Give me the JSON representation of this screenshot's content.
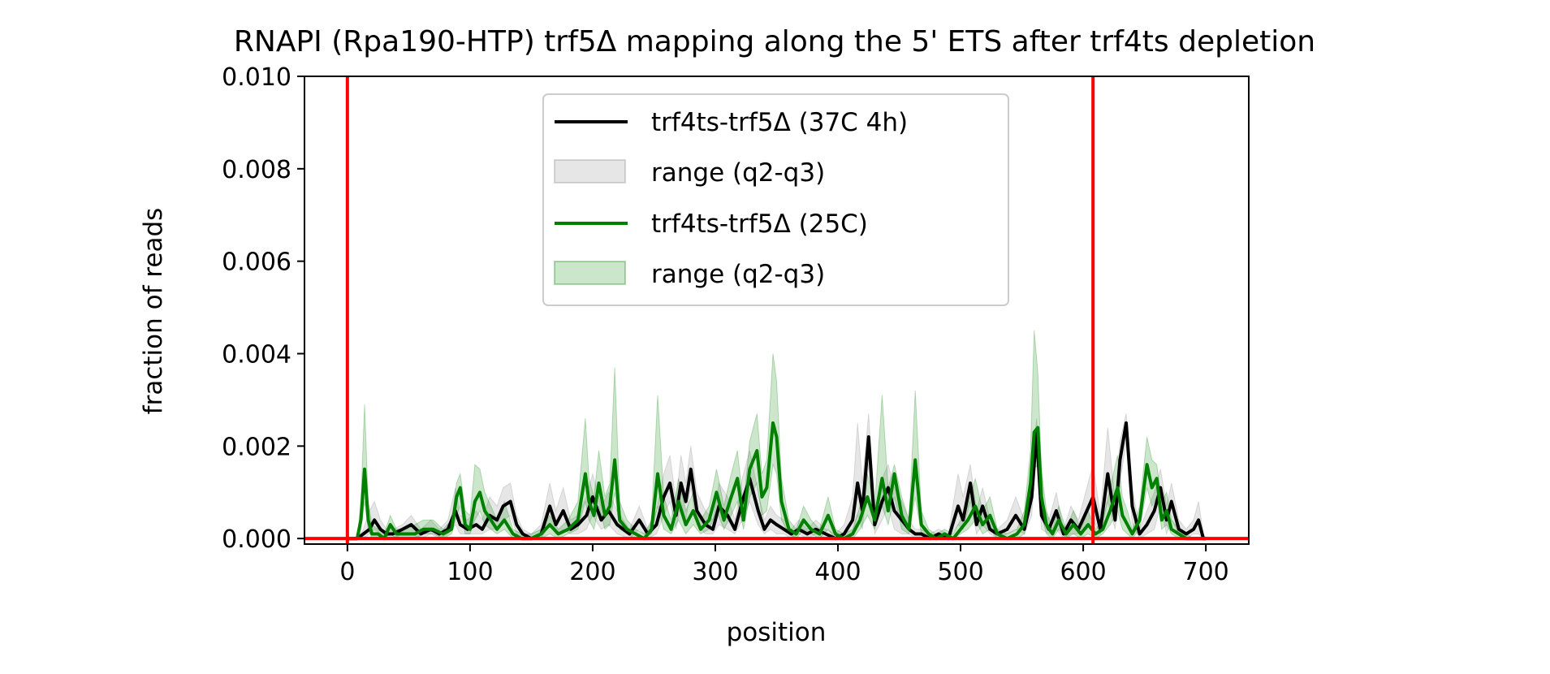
{
  "chart_data": {
    "type": "line",
    "title": "RNAPI (Rpa190-HTP) trf5Δ mapping along the 5' ETS after trf4ts depletion",
    "xlabel": "position",
    "ylabel": "fraction of reads",
    "xlim": [
      -35,
      735
    ],
    "ylim": [
      -0.00012,
      0.01
    ],
    "xticks": [
      0,
      100,
      200,
      300,
      400,
      500,
      600,
      700
    ],
    "xtick_labels": [
      "0",
      "100",
      "200",
      "300",
      "400",
      "500",
      "600",
      "700"
    ],
    "yticks": [
      0.0,
      0.002,
      0.004,
      0.006,
      0.008,
      0.01
    ],
    "ytick_labels": [
      "0.000",
      "0.002",
      "0.004",
      "0.006",
      "0.008",
      "0.010"
    ],
    "legend_position": "top-center",
    "vertical_lines": [
      0,
      608
    ],
    "horizontal_lines": [
      0
    ],
    "reference_color": "#ff0000",
    "series": [
      {
        "name": "trf4ts-trf5Δ (37C 4h)",
        "color": "#000000",
        "x": [
          0,
          8,
          13,
          18,
          22,
          27,
          32,
          37,
          45,
          52,
          60,
          68,
          75,
          82,
          88,
          92,
          98,
          105,
          110,
          116,
          122,
          127,
          133,
          138,
          143,
          150,
          158,
          165,
          170,
          176,
          182,
          188,
          195,
          200,
          207,
          213,
          220,
          230,
          238,
          245,
          252,
          258,
          263,
          268,
          272,
          276,
          280,
          285,
          292,
          298,
          303,
          310,
          316,
          322,
          328,
          335,
          340,
          345,
          350,
          356,
          362,
          368,
          375,
          382,
          390,
          398,
          405,
          412,
          416,
          420,
          425,
          430,
          436,
          441,
          446,
          452,
          458,
          463,
          468,
          475,
          482,
          490,
          498,
          502,
          508,
          513,
          518,
          524,
          530,
          538,
          545,
          552,
          558,
          562,
          566,
          572,
          578,
          584,
          590,
          596,
          603,
          608,
          614,
          620,
          626,
          630,
          635,
          640,
          646,
          652,
          658,
          663,
          668,
          672,
          678,
          684,
          690,
          694,
          698,
          700
        ],
        "values": [
          0.0,
          0.0,
          0.0001,
          0.0002,
          0.0004,
          0.0002,
          0.0001,
          0.0001,
          0.0002,
          0.0003,
          0.0001,
          0.0002,
          0.0001,
          0.0002,
          0.0006,
          0.0003,
          0.0002,
          0.0003,
          0.0002,
          0.0005,
          0.0004,
          0.0007,
          0.0008,
          0.0003,
          0.0001,
          0.0,
          0.0001,
          0.0007,
          0.0003,
          0.0006,
          0.0002,
          0.0003,
          0.0005,
          0.0009,
          0.0004,
          0.0006,
          0.0003,
          0.0001,
          0.0004,
          0.0001,
          0.0003,
          0.0009,
          0.0012,
          0.0005,
          0.0012,
          0.0008,
          0.0015,
          0.0006,
          0.0003,
          0.0002,
          0.0007,
          0.0005,
          0.0002,
          0.0008,
          0.0013,
          0.0006,
          0.0002,
          0.0004,
          0.0003,
          0.0002,
          0.0001,
          0.0002,
          0.0001,
          0.0002,
          0.0001,
          0.0,
          0.0001,
          0.0004,
          0.0012,
          0.0006,
          0.0022,
          0.0003,
          0.0008,
          0.0011,
          0.0006,
          0.0004,
          0.0002,
          0.0001,
          0.0001,
          0.0,
          0.0001,
          0.0,
          0.0007,
          0.0004,
          0.0012,
          0.0003,
          0.0007,
          0.0002,
          0.0001,
          0.0002,
          0.0005,
          0.0002,
          0.0009,
          0.0023,
          0.0005,
          0.0002,
          0.0006,
          0.0001,
          0.0004,
          0.0002,
          0.0006,
          0.0009,
          0.0002,
          0.0014,
          0.0004,
          0.0017,
          0.0025,
          0.0007,
          0.0001,
          0.0003,
          0.0006,
          0.0011,
          0.0004,
          0.0008,
          0.0002,
          0.0001,
          0.0002,
          0.0004,
          0.0,
          0.0
        ]
      },
      {
        "name": "range (q2-q3)",
        "color": "#808080",
        "series_type": "band",
        "band_of": 0,
        "upper_values": [
          0.0,
          0.0,
          0.0002,
          0.0006,
          0.0008,
          0.0004,
          0.0002,
          0.0002,
          0.0003,
          0.0005,
          0.0002,
          0.0004,
          0.0002,
          0.0004,
          0.0011,
          0.0005,
          0.0004,
          0.0006,
          0.0004,
          0.0009,
          0.0007,
          0.0011,
          0.0012,
          0.0005,
          0.0002,
          0.0001,
          0.0003,
          0.0012,
          0.0006,
          0.0011,
          0.0004,
          0.0005,
          0.0009,
          0.0014,
          0.0007,
          0.001,
          0.0006,
          0.0002,
          0.0007,
          0.0002,
          0.0006,
          0.0014,
          0.0018,
          0.0008,
          0.0018,
          0.0012,
          0.002,
          0.001,
          0.0006,
          0.0004,
          0.0012,
          0.0009,
          0.0004,
          0.0013,
          0.0019,
          0.001,
          0.0004,
          0.0007,
          0.0005,
          0.0004,
          0.0002,
          0.0004,
          0.0002,
          0.0004,
          0.0002,
          0.0001,
          0.0003,
          0.0009,
          0.0025,
          0.0012,
          0.0027,
          0.0006,
          0.0013,
          0.0016,
          0.0011,
          0.0008,
          0.0004,
          0.0002,
          0.0002,
          0.0001,
          0.0002,
          0.0001,
          0.0014,
          0.0009,
          0.0016,
          0.0006,
          0.0011,
          0.0004,
          0.0002,
          0.0004,
          0.0009,
          0.0004,
          0.0014,
          0.0026,
          0.0009,
          0.0004,
          0.001,
          0.0002,
          0.0007,
          0.0004,
          0.0011,
          0.0016,
          0.0005,
          0.0024,
          0.0008,
          0.0021,
          0.0027,
          0.0011,
          0.0002,
          0.0006,
          0.001,
          0.0015,
          0.0007,
          0.0012,
          0.0004,
          0.0002,
          0.0004,
          0.0008,
          0.0001,
          0.0
        ],
        "lower_values": [
          0.0,
          0.0,
          0.0,
          0.0001,
          0.0002,
          0.0001,
          0.0,
          0.0,
          0.0001,
          0.0001,
          0.0,
          0.0001,
          0.0,
          0.0001,
          0.0003,
          0.0001,
          0.0001,
          0.0001,
          0.0001,
          0.0002,
          0.0002,
          0.0004,
          0.0005,
          0.0001,
          0.0,
          0.0,
          0.0,
          0.0003,
          0.0001,
          0.0002,
          0.0001,
          0.0001,
          0.0002,
          0.0005,
          0.0002,
          0.0003,
          0.0001,
          0.0,
          0.0002,
          0.0,
          0.0001,
          0.0005,
          0.0008,
          0.0002,
          0.0008,
          0.0004,
          0.0011,
          0.0003,
          0.0001,
          0.0001,
          0.0003,
          0.0002,
          0.0001,
          0.0004,
          0.0008,
          0.0003,
          0.0001,
          0.0002,
          0.0001,
          0.0001,
          0.0,
          0.0001,
          0.0,
          0.0001,
          0.0,
          0.0,
          0.0,
          0.0001,
          0.0005,
          0.0002,
          0.0016,
          0.0001,
          0.0004,
          0.0007,
          0.0002,
          0.0001,
          0.0001,
          0.0,
          0.0,
          0.0,
          0.0,
          0.0,
          0.0003,
          0.0002,
          0.0008,
          0.0001,
          0.0003,
          0.0001,
          0.0,
          0.0001,
          0.0002,
          0.0001,
          0.0005,
          0.0019,
          0.0002,
          0.0001,
          0.0002,
          0.0,
          0.0001,
          0.0001,
          0.0002,
          0.0004,
          0.0001,
          0.0008,
          0.0002,
          0.0012,
          0.0021,
          0.0003,
          0.0,
          0.0001,
          0.0002,
          0.0007,
          0.0001,
          0.0004,
          0.0001,
          0.0,
          0.0001,
          0.0001,
          0.0,
          0.0
        ]
      },
      {
        "name": "trf4ts-trf5Δ (25C)",
        "color": "#008000",
        "x": [
          0,
          8,
          11,
          14,
          17,
          20,
          25,
          30,
          35,
          40,
          48,
          55,
          62,
          70,
          78,
          85,
          89,
          92,
          96,
          100,
          104,
          108,
          112,
          117,
          122,
          128,
          135,
          142,
          150,
          158,
          165,
          172,
          180,
          188,
          194,
          197,
          201,
          205,
          210,
          214,
          218,
          222,
          228,
          235,
          242,
          248,
          253,
          258,
          264,
          270,
          276,
          282,
          288,
          295,
          301,
          307,
          313,
          318,
          323,
          328,
          334,
          338,
          342,
          347,
          350,
          354,
          360,
          366,
          372,
          378,
          385,
          392,
          398,
          405,
          412,
          418,
          424,
          430,
          436,
          441,
          446,
          452,
          458,
          463,
          468,
          474,
          480,
          487,
          494,
          500,
          506,
          512,
          518,
          524,
          530,
          538,
          546,
          552,
          557,
          560,
          563,
          566,
          570,
          575,
          580,
          586,
          592,
          598,
          604,
          610,
          616,
          622,
          628,
          632,
          636,
          640,
          646,
          652,
          656,
          660,
          664,
          668,
          672,
          678,
          684,
          690,
          695,
          700
        ],
        "values": [
          0.0,
          0.0,
          0.0004,
          0.0015,
          0.0004,
          0.0001,
          0.0001,
          0.0,
          0.0003,
          0.0001,
          0.0001,
          0.0001,
          0.0002,
          0.0002,
          0.0001,
          0.0002,
          0.0009,
          0.0011,
          0.0003,
          0.0002,
          0.0008,
          0.001,
          0.0006,
          0.0004,
          0.0002,
          0.0004,
          0.0001,
          0.0,
          0.0,
          0.0001,
          0.0003,
          0.0001,
          0.0002,
          0.0004,
          0.0014,
          0.0008,
          0.0005,
          0.0012,
          0.0005,
          0.0007,
          0.0017,
          0.0004,
          0.0002,
          0.0001,
          0.0,
          0.0002,
          0.0014,
          0.0005,
          0.0002,
          0.0008,
          0.0003,
          0.0006,
          0.0002,
          0.0004,
          0.001,
          0.0004,
          0.0009,
          0.0013,
          0.0004,
          0.0015,
          0.0019,
          0.0009,
          0.0011,
          0.0025,
          0.0022,
          0.0008,
          0.0002,
          0.0001,
          0.0004,
          0.0002,
          0.0001,
          0.0005,
          0.0001,
          0.0,
          0.0001,
          0.0004,
          0.0009,
          0.0004,
          0.0013,
          0.0006,
          0.0014,
          0.0005,
          0.0002,
          0.0017,
          0.0003,
          0.0001,
          0.0,
          0.0001,
          0.0,
          0.0002,
          0.0004,
          0.0007,
          0.0003,
          0.0005,
          0.0001,
          0.0,
          0.0001,
          0.0003,
          0.0012,
          0.0023,
          0.0024,
          0.0009,
          0.0003,
          0.0001,
          0.0004,
          0.0001,
          0.0003,
          0.0001,
          0.0003,
          0.0001,
          0.0002,
          0.0006,
          0.0011,
          0.0005,
          0.0003,
          0.0001,
          0.0004,
          0.0016,
          0.0011,
          0.0013,
          0.0004,
          0.0006,
          0.0002,
          0.0001,
          0.0,
          0.0,
          0.0,
          0.0
        ]
      },
      {
        "name": "range (q2-q3)",
        "color": "#008000",
        "series_type": "band",
        "band_of": 2,
        "upper_values": [
          0.0,
          0.0,
          0.0008,
          0.0029,
          0.0008,
          0.0003,
          0.0002,
          0.0001,
          0.0005,
          0.0002,
          0.0002,
          0.0003,
          0.0004,
          0.0004,
          0.0002,
          0.0004,
          0.0012,
          0.0014,
          0.0006,
          0.0005,
          0.0016,
          0.0015,
          0.001,
          0.0007,
          0.0004,
          0.0008,
          0.0002,
          0.0001,
          0.0001,
          0.0002,
          0.0005,
          0.0002,
          0.0004,
          0.0008,
          0.0026,
          0.0013,
          0.0009,
          0.0019,
          0.0009,
          0.0012,
          0.0037,
          0.0008,
          0.0004,
          0.0002,
          0.0001,
          0.0004,
          0.0031,
          0.0009,
          0.0004,
          0.0013,
          0.0006,
          0.001,
          0.0004,
          0.0007,
          0.0015,
          0.0007,
          0.0014,
          0.0019,
          0.0007,
          0.0021,
          0.0027,
          0.0014,
          0.0017,
          0.004,
          0.0034,
          0.0013,
          0.0004,
          0.0002,
          0.0007,
          0.0004,
          0.0002,
          0.0009,
          0.0002,
          0.0001,
          0.0002,
          0.0007,
          0.0014,
          0.0007,
          0.0031,
          0.0011,
          0.0016,
          0.0009,
          0.0004,
          0.0032,
          0.0006,
          0.0002,
          0.0001,
          0.0002,
          0.0001,
          0.0004,
          0.0007,
          0.0013,
          0.0006,
          0.0009,
          0.0002,
          0.0001,
          0.0002,
          0.0006,
          0.0019,
          0.0045,
          0.0036,
          0.0015,
          0.0006,
          0.0002,
          0.0007,
          0.0002,
          0.0006,
          0.0002,
          0.0006,
          0.0002,
          0.0004,
          0.0011,
          0.0018,
          0.0009,
          0.0006,
          0.0002,
          0.0007,
          0.0022,
          0.0017,
          0.0016,
          0.0008,
          0.001,
          0.0004,
          0.0002,
          0.0001,
          0.0,
          0.0,
          0.0
        ],
        "lower_values": [
          0.0,
          0.0,
          0.0002,
          0.0008,
          0.0002,
          0.0,
          0.0,
          0.0,
          0.0001,
          0.0,
          0.0,
          0.0,
          0.0001,
          0.0001,
          0.0,
          0.0001,
          0.0005,
          0.0007,
          0.0001,
          0.0001,
          0.0004,
          0.0006,
          0.0003,
          0.0002,
          0.0001,
          0.0002,
          0.0,
          0.0,
          0.0,
          0.0,
          0.0001,
          0.0,
          0.0001,
          0.0002,
          0.0008,
          0.0004,
          0.0002,
          0.0007,
          0.0002,
          0.0003,
          0.001,
          0.0002,
          0.0001,
          0.0,
          0.0,
          0.0001,
          0.0007,
          0.0002,
          0.0001,
          0.0004,
          0.0001,
          0.0003,
          0.0001,
          0.0002,
          0.0006,
          0.0002,
          0.0005,
          0.0008,
          0.0002,
          0.0009,
          0.0012,
          0.0005,
          0.0006,
          0.0016,
          0.0014,
          0.0004,
          0.0001,
          0.0,
          0.0002,
          0.0001,
          0.0,
          0.0002,
          0.0,
          0.0,
          0.0,
          0.0002,
          0.0005,
          0.0002,
          0.0007,
          0.0003,
          0.0009,
          0.0002,
          0.0001,
          0.0009,
          0.0001,
          0.0,
          0.0,
          0.0,
          0.0,
          0.0001,
          0.0002,
          0.0004,
          0.0001,
          0.0002,
          0.0,
          0.0,
          0.0,
          0.0001,
          0.0007,
          0.0015,
          0.0016,
          0.0005,
          0.0001,
          0.0,
          0.0002,
          0.0,
          0.0001,
          0.0,
          0.0001,
          0.0,
          0.0001,
          0.0003,
          0.0006,
          0.0002,
          0.0001,
          0.0,
          0.0002,
          0.0011,
          0.0007,
          0.0009,
          0.0002,
          0.0003,
          0.0001,
          0.0,
          0.0,
          0.0,
          0.0,
          0.0
        ]
      }
    ]
  }
}
